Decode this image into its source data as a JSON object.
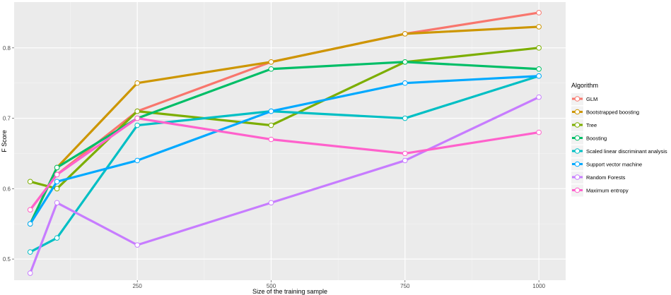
{
  "chart_data": {
    "type": "line",
    "xlabel": "Size of the training sample",
    "ylabel": "F Score",
    "x": [
      50,
      100,
      250,
      500,
      750,
      1000
    ],
    "xticks": [
      250,
      500,
      750,
      1000
    ],
    "yticks": [
      0.5,
      0.6,
      0.7,
      0.8
    ],
    "xlim": [
      20,
      1050
    ],
    "ylim": [
      0.47,
      0.865
    ],
    "grid": true,
    "legend_title": "Algorithm",
    "legend_position": "right",
    "series": [
      {
        "name": "GLM",
        "color": "#F8766D",
        "values": [
          0.57,
          0.62,
          0.71,
          0.78,
          0.82,
          0.85
        ]
      },
      {
        "name": "Bootstrapped boosting",
        "color": "#CD9600",
        "values": [
          0.55,
          0.63,
          0.75,
          0.78,
          0.82,
          0.83
        ]
      },
      {
        "name": "Tree",
        "color": "#7CAE00",
        "values": [
          0.61,
          0.6,
          0.71,
          0.69,
          0.78,
          0.8
        ]
      },
      {
        "name": "Boosting",
        "color": "#00BE67",
        "values": [
          0.55,
          0.63,
          0.7,
          0.77,
          0.78,
          0.77
        ]
      },
      {
        "name": "Scaled linear discriminant analysis",
        "color": "#00BFC4",
        "values": [
          0.51,
          0.53,
          0.69,
          0.71,
          0.7,
          0.76
        ]
      },
      {
        "name": "Support vector machine",
        "color": "#00A9FF",
        "values": [
          0.55,
          0.61,
          0.64,
          0.71,
          0.75,
          0.76
        ]
      },
      {
        "name": "Random Forests",
        "color": "#C77CFF",
        "values": [
          0.48,
          0.58,
          0.52,
          0.58,
          0.64,
          0.73
        ]
      },
      {
        "name": "Maximum entropy",
        "color": "#FF61CC",
        "values": [
          0.57,
          0.62,
          0.7,
          0.67,
          0.65,
          0.68
        ]
      }
    ]
  }
}
